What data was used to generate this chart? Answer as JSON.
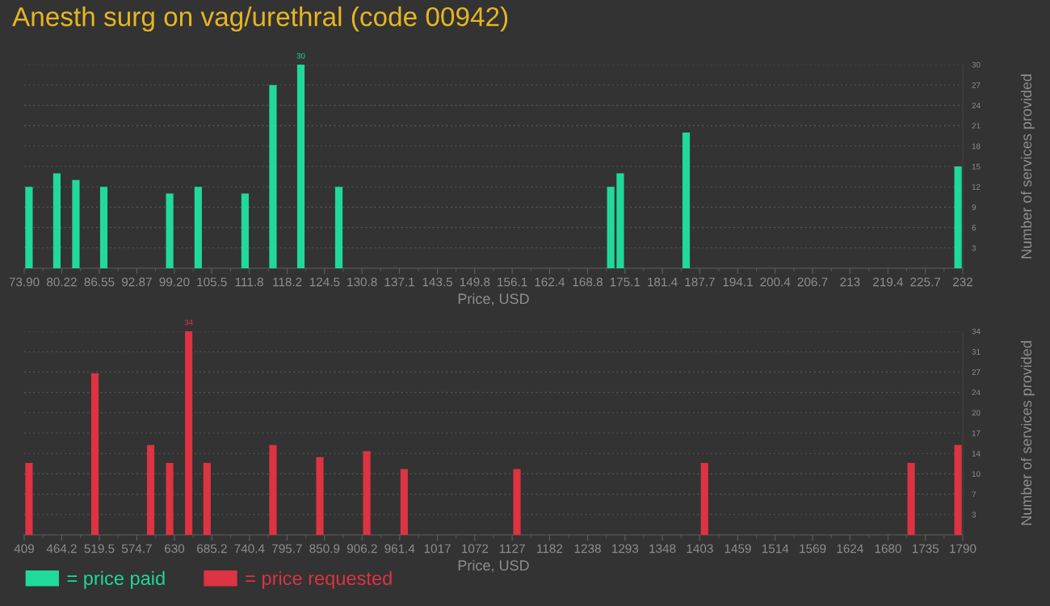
{
  "chart_data": [
    {
      "type": "bar",
      "title": "Anesth surg on vag/urethral (code 00942)",
      "xlabel": "Price, USD",
      "ylabel": "Number of services provided",
      "xlim": [
        73.9,
        232
      ],
      "xticks": [
        {
          "value": 73.9,
          "label": "73.90"
        },
        80.22,
        86.55,
        92.87,
        {
          "value": 99.2,
          "label": "99.20"
        },
        105.5,
        111.8,
        118.2,
        124.5,
        130.8,
        137.1,
        143.5,
        149.8,
        156.1,
        162.4,
        168.8,
        175.1,
        181.4,
        187.7,
        194.1,
        200.4,
        206.7,
        213,
        219.4,
        225.7,
        232
      ],
      "ylim": [
        0,
        30
      ],
      "yticks": [
        3,
        6,
        9,
        12,
        15,
        18,
        21,
        24,
        27,
        30
      ],
      "grid": "y",
      "legend": "bottom left",
      "series": [
        {
          "name": "= price paid",
          "color": "#20d99b",
          "x": [
            74.7,
            79.4,
            82.6,
            87.3,
            98.4,
            103.2,
            111.1,
            115.8,
            120.5,
            126.9,
            172.7,
            174.3,
            185.4,
            231.2
          ],
          "values": [
            12,
            14,
            13,
            12,
            11,
            12,
            11,
            27,
            30,
            12,
            12,
            14,
            20,
            15
          ],
          "value_labels": [
            null,
            null,
            null,
            null,
            null,
            null,
            null,
            null,
            "30",
            null,
            null,
            null,
            null,
            null
          ]
        }
      ]
    },
    {
      "type": "bar",
      "xlabel": "Price, USD",
      "ylabel": "Number of services provided",
      "xlim": [
        409,
        1790
      ],
      "xticks": [
        409,
        464.2,
        519.5,
        574.7,
        630,
        685.2,
        740.4,
        795.7,
        850.9,
        906.2,
        961.4,
        1017,
        1072,
        1127,
        1182,
        1238,
        1293,
        1348,
        1403,
        1459,
        1514,
        1569,
        1624,
        1680,
        1735,
        1790
      ],
      "ylim": [
        0,
        34
      ],
      "yticks": [
        {
          "value": 3.4,
          "label": "3"
        },
        {
          "value": 6.8,
          "label": "7"
        },
        {
          "value": 10.2,
          "label": "10"
        },
        {
          "value": 13.6,
          "label": "14"
        },
        17,
        {
          "value": 20.4,
          "label": "20"
        },
        {
          "value": 23.8,
          "label": "24"
        },
        {
          "value": 27.2,
          "label": "27"
        },
        {
          "value": 30.6,
          "label": "31"
        },
        34
      ],
      "grid": "y",
      "legend": "bottom left",
      "series": [
        {
          "name": "= price requested",
          "color": "#dd3342",
          "x": [
            416,
            513,
            595,
            623,
            651,
            678,
            775,
            844,
            913,
            968,
            1134,
            1410,
            1714,
            1783
          ],
          "values": [
            12,
            27,
            15,
            12,
            34,
            12,
            15,
            13,
            14,
            11,
            11,
            12,
            12,
            15
          ],
          "value_labels": [
            null,
            null,
            null,
            null,
            "34",
            null,
            null,
            null,
            null,
            null,
            null,
            null,
            null,
            null
          ]
        }
      ]
    }
  ]
}
